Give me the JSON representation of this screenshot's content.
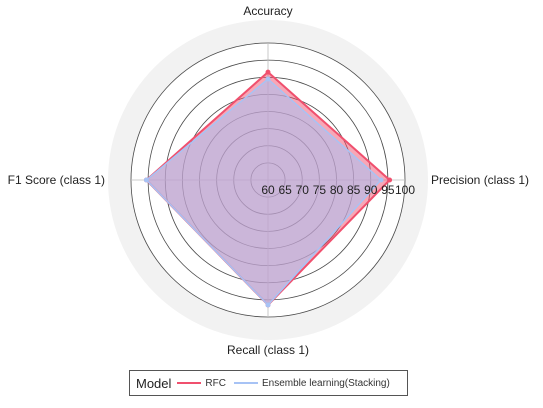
{
  "chart_data": {
    "type": "radar",
    "axes": [
      "Accuracy",
      "Precision (class 1)",
      "Recall (class 1)",
      "F1 Score (class 1)"
    ],
    "radial_ticks": [
      "60",
      "65",
      "70",
      "75",
      "80",
      "85",
      "90",
      "95",
      "100"
    ],
    "rlim": [
      60,
      100
    ],
    "grid": true,
    "series": [
      {
        "name": "RFC",
        "values": [
          91.5,
          95.5,
          96.5,
          95.5
        ],
        "color": "#f0506e"
      },
      {
        "name": "Ensemble learning(Stacking)",
        "values": [
          89.5,
          93.0,
          96.5,
          95.5
        ],
        "color": "#a7c3f5"
      }
    ],
    "legend": {
      "title": "Model",
      "placement": "bottom"
    }
  }
}
